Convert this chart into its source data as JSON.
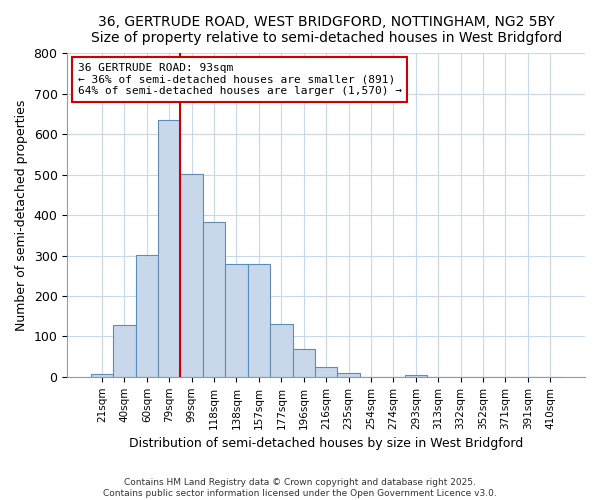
{
  "title1": "36, GERTRUDE ROAD, WEST BRIDGFORD, NOTTINGHAM, NG2 5BY",
  "title2": "Size of property relative to semi-detached houses in West Bridgford",
  "xlabel": "Distribution of semi-detached houses by size in West Bridgford",
  "ylabel": "Number of semi-detached properties",
  "bin_labels": [
    "21sqm",
    "40sqm",
    "60sqm",
    "79sqm",
    "99sqm",
    "118sqm",
    "138sqm",
    "157sqm",
    "177sqm",
    "196sqm",
    "216sqm",
    "235sqm",
    "254sqm",
    "274sqm",
    "293sqm",
    "313sqm",
    "332sqm",
    "352sqm",
    "371sqm",
    "391sqm",
    "410sqm"
  ],
  "bar_values": [
    8,
    128,
    302,
    635,
    502,
    383,
    280,
    280,
    130,
    70,
    25,
    10,
    0,
    0,
    5,
    0,
    0,
    0,
    0,
    0,
    0
  ],
  "bar_color": "#c8d8ea",
  "bar_edge_color": "#5b8db8",
  "property_bin_index": 4,
  "vline_color": "#cc0000",
  "annotation_title": "36 GERTRUDE ROAD: 93sqm",
  "annotation_line1": "← 36% of semi-detached houses are smaller (891)",
  "annotation_line2": "64% of semi-detached houses are larger (1,570) →",
  "annotation_box_color": "#cc0000",
  "ylim": [
    0,
    800
  ],
  "yticks": [
    0,
    100,
    200,
    300,
    400,
    500,
    600,
    700,
    800
  ],
  "footer1": "Contains HM Land Registry data © Crown copyright and database right 2025.",
  "footer2": "Contains public sector information licensed under the Open Government Licence v3.0.",
  "bg_color": "#ffffff",
  "plot_bg_color": "#ffffff",
  "grid_color": "#c8d8ea"
}
